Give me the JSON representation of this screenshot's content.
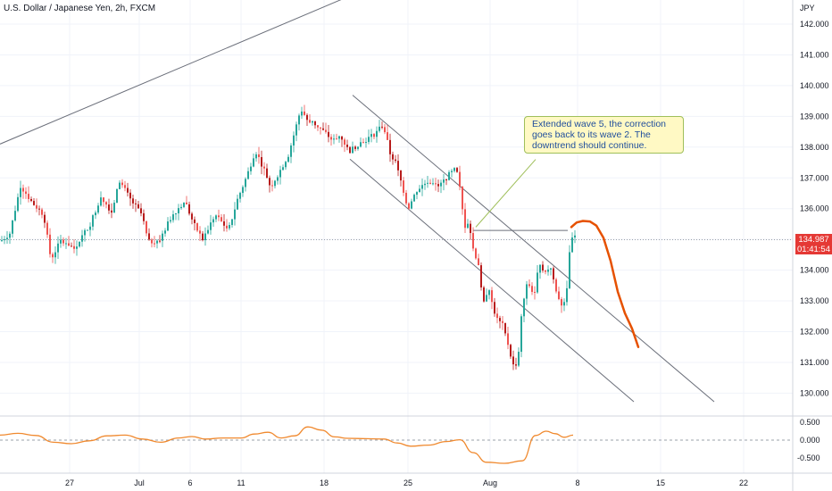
{
  "header": {
    "symbol": "U.S. Dollar / Japanese Yen, 2h, FXCM"
  },
  "currency_label": "JPY",
  "annotation": "Extended wave 5, the correction goes back to its wave 2. The downtrend should continue.",
  "last_price": {
    "value": "134.987",
    "countdown": "01:41:54"
  },
  "colors": {
    "up": "#26a69a",
    "down": "#ef5350",
    "dark_red": "#b71c1c",
    "forecast": "#e65100",
    "oscillator": "#f0892e",
    "grid": "#f0f3fa"
  },
  "chart_data": [
    {
      "type": "candlestick",
      "title": "U.S. Dollar / Japanese Yen, 2h, FXCM",
      "y_unit": "JPY",
      "ylim": [
        129.6,
        142.4
      ],
      "y_ticks": [
        "142.000",
        "141.000",
        "140.000",
        "139.000",
        "138.000",
        "137.000",
        "136.000",
        "134.000",
        "133.000",
        "132.000",
        "131.000",
        "130.000"
      ],
      "x_ticks": [
        "27",
        "Jul",
        "6",
        "11",
        "18",
        "25",
        "Aug",
        "8",
        "15",
        "22"
      ],
      "price_path": [
        {
          "t": 0,
          "p": 134.95
        },
        {
          "t": 10,
          "p": 135.2
        },
        {
          "t": 22,
          "p": 136.75
        },
        {
          "t": 35,
          "p": 136.2
        },
        {
          "t": 48,
          "p": 135.8
        },
        {
          "t": 56,
          "p": 134.35
        },
        {
          "t": 68,
          "p": 135.0
        },
        {
          "t": 82,
          "p": 134.7
        },
        {
          "t": 100,
          "p": 135.5
        },
        {
          "t": 112,
          "p": 136.4
        },
        {
          "t": 124,
          "p": 135.9
        },
        {
          "t": 133,
          "p": 136.9
        },
        {
          "t": 145,
          "p": 136.3
        },
        {
          "t": 158,
          "p": 135.8
        },
        {
          "t": 165,
          "p": 134.9
        },
        {
          "t": 178,
          "p": 135.0
        },
        {
          "t": 192,
          "p": 135.8
        },
        {
          "t": 206,
          "p": 136.25
        },
        {
          "t": 216,
          "p": 135.5
        },
        {
          "t": 226,
          "p": 135.0
        },
        {
          "t": 240,
          "p": 135.8
        },
        {
          "t": 255,
          "p": 135.3
        },
        {
          "t": 265,
          "p": 136.3
        },
        {
          "t": 276,
          "p": 137.1
        },
        {
          "t": 285,
          "p": 137.9
        },
        {
          "t": 296,
          "p": 137.2
        },
        {
          "t": 302,
          "p": 136.7
        },
        {
          "t": 312,
          "p": 137.2
        },
        {
          "t": 322,
          "p": 137.75
        },
        {
          "t": 330,
          "p": 138.6
        },
        {
          "t": 336,
          "p": 139.25
        },
        {
          "t": 343,
          "p": 138.9
        },
        {
          "t": 352,
          "p": 138.75
        },
        {
          "t": 362,
          "p": 138.5
        },
        {
          "t": 372,
          "p": 138.2
        },
        {
          "t": 380,
          "p": 138.4
        },
        {
          "t": 390,
          "p": 137.85
        },
        {
          "t": 400,
          "p": 138.1
        },
        {
          "t": 412,
          "p": 138.3
        },
        {
          "t": 422,
          "p": 138.5
        },
        {
          "t": 428,
          "p": 138.75
        },
        {
          "t": 436,
          "p": 137.8
        },
        {
          "t": 442,
          "p": 137.5
        },
        {
          "t": 450,
          "p": 136.7
        },
        {
          "t": 456,
          "p": 136.0
        },
        {
          "t": 466,
          "p": 136.6
        },
        {
          "t": 478,
          "p": 136.9
        },
        {
          "t": 490,
          "p": 136.7
        },
        {
          "t": 500,
          "p": 137.05
        },
        {
          "t": 510,
          "p": 137.3
        },
        {
          "t": 515,
          "p": 136.5
        },
        {
          "t": 519,
          "p": 135.4
        },
        {
          "t": 524,
          "p": 135.6
        },
        {
          "t": 529,
          "p": 134.7
        },
        {
          "t": 535,
          "p": 134.2
        },
        {
          "t": 540,
          "p": 132.8
        },
        {
          "t": 546,
          "p": 133.5
        },
        {
          "t": 551,
          "p": 132.8
        },
        {
          "t": 556,
          "p": 132.4
        },
        {
          "t": 562,
          "p": 132.2
        },
        {
          "t": 568,
          "p": 131.6
        },
        {
          "t": 574,
          "p": 130.9
        },
        {
          "t": 579,
          "p": 131.0
        },
        {
          "t": 584,
          "p": 132.8
        },
        {
          "t": 590,
          "p": 133.6
        },
        {
          "t": 598,
          "p": 133.2
        },
        {
          "t": 603,
          "p": 134.3
        },
        {
          "t": 610,
          "p": 133.9
        },
        {
          "t": 616,
          "p": 134.1
        },
        {
          "t": 622,
          "p": 133.3
        },
        {
          "t": 628,
          "p": 132.9
        },
        {
          "t": 633,
          "p": 133.1
        },
        {
          "t": 637,
          "p": 134.5
        },
        {
          "t": 641,
          "p": 135.2
        },
        {
          "t": 644,
          "p": 134.99
        }
      ],
      "forecast_path": [
        [
          640,
          135.4
        ],
        [
          646,
          135.55
        ],
        [
          653,
          135.6
        ],
        [
          661,
          135.58
        ],
        [
          668,
          135.45
        ],
        [
          676,
          135.05
        ],
        [
          684,
          134.3
        ],
        [
          692,
          133.3
        ],
        [
          700,
          132.6
        ],
        [
          708,
          132.1
        ],
        [
          715,
          131.5
        ]
      ],
      "trendlines": [
        {
          "name": "rising-trendline",
          "x1": 0,
          "p1": 138.1,
          "x2": 384,
          "p2": 142.82
        },
        {
          "name": "channel-upper",
          "x1": 395,
          "p1": 139.69,
          "x2": 800,
          "p2": 129.72
        },
        {
          "name": "channel-lower",
          "x1": 392,
          "p1": 137.61,
          "x2": 710,
          "p2": 129.72
        },
        {
          "name": "callout-pointer",
          "x1": 533,
          "p1": 135.4,
          "x2": 600,
          "p2": 137.6
        },
        {
          "name": "wave-2-level",
          "x1": 530,
          "p1": 135.29,
          "x2": 636,
          "p2": 135.29
        }
      ],
      "reference_level": 134.99
    },
    {
      "type": "line",
      "title": "",
      "ylim": [
        -0.75,
        0.62
      ],
      "y_ticks": [
        "0.500",
        "0.000",
        "-0.500"
      ],
      "zero_line": 0,
      "series": [
        {
          "values": [
            [
              0,
              0.14
            ],
            [
              20,
              0.19
            ],
            [
              40,
              0.13
            ],
            [
              60,
              -0.06
            ],
            [
              80,
              -0.1
            ],
            [
              100,
              -0.02
            ],
            [
              120,
              0.12
            ],
            [
              140,
              0.14
            ],
            [
              160,
              0.03
            ],
            [
              180,
              -0.06
            ],
            [
              200,
              0.06
            ],
            [
              215,
              0.1
            ],
            [
              230,
              0.03
            ],
            [
              250,
              0.06
            ],
            [
              270,
              0.06
            ],
            [
              285,
              0.17
            ],
            [
              300,
              0.22
            ],
            [
              315,
              0.06
            ],
            [
              330,
              0.12
            ],
            [
              345,
              0.37
            ],
            [
              360,
              0.28
            ],
            [
              375,
              0.09
            ],
            [
              390,
              0.05
            ],
            [
              410,
              0.04
            ],
            [
              430,
              0.03
            ],
            [
              445,
              -0.08
            ],
            [
              460,
              -0.17
            ],
            [
              480,
              -0.14
            ],
            [
              500,
              -0.04
            ],
            [
              515,
              0.01
            ],
            [
              530,
              -0.35
            ],
            [
              545,
              -0.62
            ],
            [
              565,
              -0.65
            ],
            [
              585,
              -0.58
            ],
            [
              600,
              0.13
            ],
            [
              612,
              0.25
            ],
            [
              622,
              0.18
            ],
            [
              632,
              0.08
            ],
            [
              642,
              0.14
            ]
          ]
        }
      ]
    }
  ]
}
